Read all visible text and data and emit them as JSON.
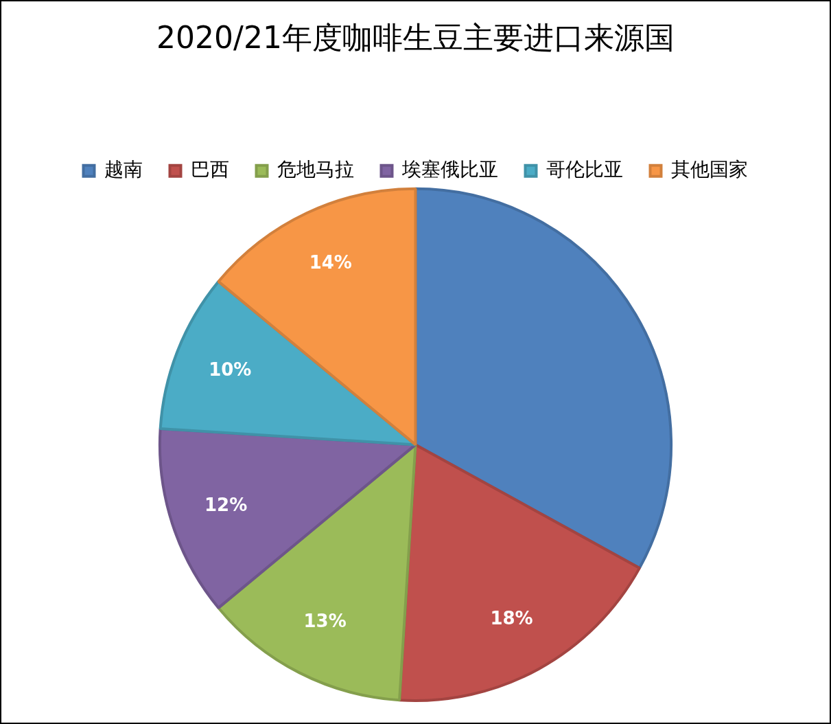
{
  "chart_data": {
    "type": "pie",
    "title": "2020/21年度咖啡生豆主要进口来源国",
    "categories": [
      "越南",
      "巴西",
      "危地马拉",
      "埃塞俄比亚",
      "哥伦比亚",
      "其他国家"
    ],
    "values": [
      33,
      18,
      13,
      12,
      10,
      14
    ],
    "colors": [
      "#4f81bd",
      "#c0504d",
      "#9bbb59",
      "#8064a2",
      "#4bacc6",
      "#f79646"
    ],
    "value_labels": [
      null,
      "18%",
      "13%",
      "12%",
      "10%",
      "14%"
    ],
    "legend": "top"
  }
}
